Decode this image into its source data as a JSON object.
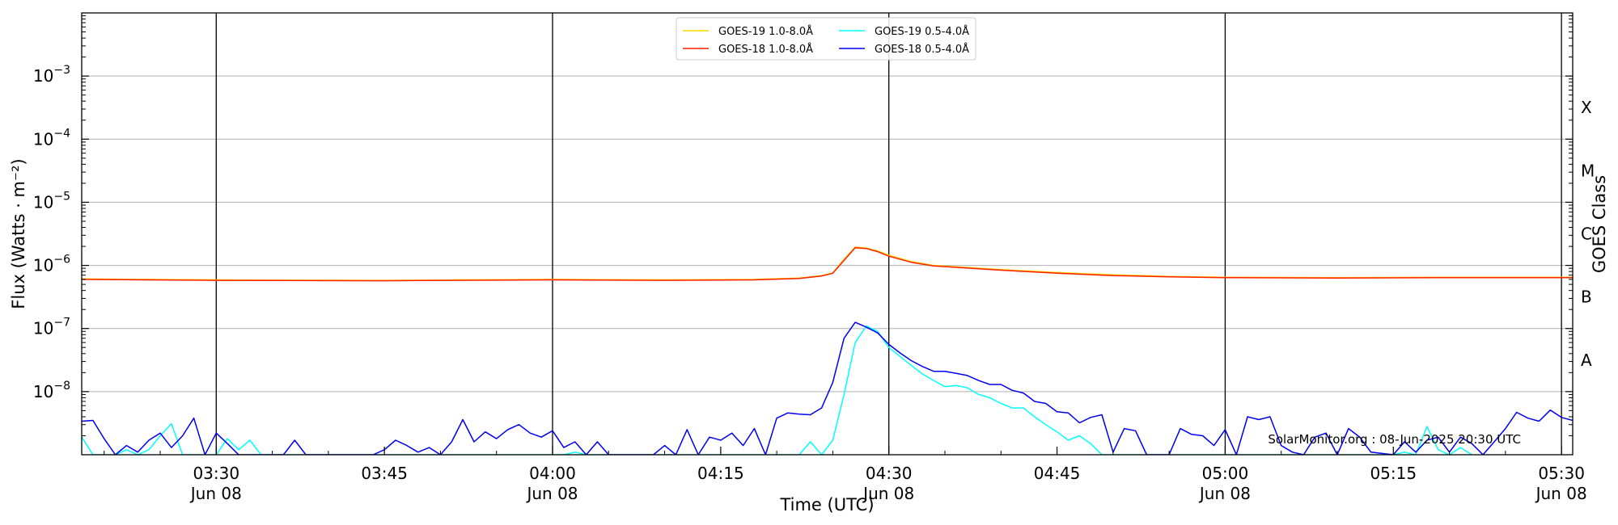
{
  "chart_data": {
    "type": "line",
    "xlabel": "Time (UTC)",
    "ylabel": "Flux (Watts · m⁻²)",
    "y2label": "GOES Class",
    "yscale": "log",
    "ylim": [
      1e-09,
      0.01
    ],
    "xlim": [
      "03:18",
      "05:31"
    ],
    "grid": "horizontal",
    "legend": "top-center",
    "x_ticks": [
      {
        "time": "03:30",
        "label": "03:30",
        "sublabel": "Jun 08"
      },
      {
        "time": "03:45",
        "label": "03:45",
        "sublabel": ""
      },
      {
        "time": "04:00",
        "label": "04:00",
        "sublabel": "Jun 08"
      },
      {
        "time": "04:15",
        "label": "04:15",
        "sublabel": ""
      },
      {
        "time": "04:30",
        "label": "04:30",
        "sublabel": "Jun 08"
      },
      {
        "time": "04:45",
        "label": "04:45",
        "sublabel": ""
      },
      {
        "time": "05:00",
        "label": "05:00",
        "sublabel": "Jun 08"
      },
      {
        "time": "05:15",
        "label": "05:15",
        "sublabel": ""
      },
      {
        "time": "05:30",
        "label": "05:30",
        "sublabel": "Jun 08"
      }
    ],
    "vertical_lines": [
      "03:30",
      "04:00",
      "04:30",
      "05:00",
      "05:30"
    ],
    "y_ticks": [
      {
        "value": 1e-08,
        "base": "10",
        "exp": "−8"
      },
      {
        "value": 1e-07,
        "base": "10",
        "exp": "−7"
      },
      {
        "value": 1e-06,
        "base": "10",
        "exp": "−6"
      },
      {
        "value": 1e-05,
        "base": "10",
        "exp": "−5"
      },
      {
        "value": 0.0001,
        "base": "10",
        "exp": "−4"
      },
      {
        "value": 0.001,
        "base": "10",
        "exp": "−3"
      }
    ],
    "goes_classes": [
      {
        "label": "A",
        "value": 3.16e-08
      },
      {
        "label": "B",
        "value": 3.16e-07
      },
      {
        "label": "C",
        "value": 3.16e-06
      },
      {
        "label": "M",
        "value": 3.16e-05
      },
      {
        "label": "X",
        "value": 0.000316
      }
    ],
    "series": [
      {
        "name": "GOES-19 1.0-8.0Å",
        "color": "#ffd700",
        "legend_row": 0,
        "legend_col": 0,
        "points": [
          [
            "03:18",
            6.1e-07
          ],
          [
            "03:30",
            5.9e-07
          ],
          [
            "03:45",
            5.8e-07
          ],
          [
            "04:00",
            6e-07
          ],
          [
            "04:10",
            5.9e-07
          ],
          [
            "04:18",
            6e-07
          ],
          [
            "04:22",
            6.3e-07
          ],
          [
            "04:24",
            6.9e-07
          ],
          [
            "04:25",
            7.6e-07
          ],
          [
            "04:26",
            1.25e-06
          ],
          [
            "04:27",
            1.95e-06
          ],
          [
            "04:28",
            1.88e-06
          ],
          [
            "04:29",
            1.7e-06
          ],
          [
            "04:30",
            1.45e-06
          ],
          [
            "04:32",
            1.15e-06
          ],
          [
            "04:34",
            1e-06
          ],
          [
            "04:36",
            9.5e-07
          ],
          [
            "04:40",
            8.6e-07
          ],
          [
            "04:45",
            7.7e-07
          ],
          [
            "04:50",
            7.1e-07
          ],
          [
            "04:55",
            6.7e-07
          ],
          [
            "05:00",
            6.5e-07
          ],
          [
            "05:10",
            6.4e-07
          ],
          [
            "05:20",
            6.5e-07
          ],
          [
            "05:31",
            6.5e-07
          ]
        ]
      },
      {
        "name": "GOES-18 1.0-8.0Å",
        "color": "#ff2000",
        "legend_row": 1,
        "legend_col": 0,
        "points": [
          [
            "03:18",
            6e-07
          ],
          [
            "03:30",
            5.8e-07
          ],
          [
            "03:45",
            5.7e-07
          ],
          [
            "04:00",
            5.9e-07
          ],
          [
            "04:10",
            5.8e-07
          ],
          [
            "04:18",
            5.9e-07
          ],
          [
            "04:22",
            6.2e-07
          ],
          [
            "04:24",
            6.8e-07
          ],
          [
            "04:25",
            7.5e-07
          ],
          [
            "04:26",
            1.2e-06
          ],
          [
            "04:27",
            1.9e-06
          ],
          [
            "04:28",
            1.85e-06
          ],
          [
            "04:29",
            1.65e-06
          ],
          [
            "04:30",
            1.4e-06
          ],
          [
            "04:32",
            1.12e-06
          ],
          [
            "04:34",
            9.8e-07
          ],
          [
            "04:36",
            9.3e-07
          ],
          [
            "04:40",
            8.4e-07
          ],
          [
            "04:45",
            7.5e-07
          ],
          [
            "04:50",
            6.9e-07
          ],
          [
            "04:55",
            6.6e-07
          ],
          [
            "05:00",
            6.4e-07
          ],
          [
            "05:10",
            6.3e-07
          ],
          [
            "05:20",
            6.4e-07
          ],
          [
            "05:31",
            6.4e-07
          ]
        ]
      },
      {
        "name": "GOES-19 0.5-4.0Å",
        "color": "#00ffff",
        "legend_row": 0,
        "legend_col": 1,
        "points": [
          [
            "03:18",
            1.9e-09
          ],
          [
            "03:19",
            1e-09
          ],
          [
            "03:21",
            1e-09
          ],
          [
            "03:22",
            1.2e-09
          ],
          [
            "03:23",
            1e-09
          ],
          [
            "03:24",
            1.2e-09
          ],
          [
            "03:25",
            2e-09
          ],
          [
            "03:26",
            3.1e-09
          ],
          [
            "03:27",
            1e-09
          ],
          [
            "03:30",
            1e-09
          ],
          [
            "03:31",
            1.8e-09
          ],
          [
            "03:32",
            1.2e-09
          ],
          [
            "03:33",
            1.7e-09
          ],
          [
            "03:34",
            1e-09
          ],
          [
            "04:01",
            1e-09
          ],
          [
            "04:02",
            1.1e-09
          ],
          [
            "04:03",
            1e-09
          ],
          [
            "04:22",
            1e-09
          ],
          [
            "04:23",
            1.6e-09
          ],
          [
            "04:24",
            1e-09
          ],
          [
            "04:25",
            1.7e-09
          ],
          [
            "04:26",
            9e-09
          ],
          [
            "04:27",
            6e-08
          ],
          [
            "04:28",
            1.1e-07
          ],
          [
            "04:29",
            9e-08
          ],
          [
            "04:30",
            5e-08
          ],
          [
            "04:31",
            3.6e-08
          ],
          [
            "04:32",
            2.6e-08
          ],
          [
            "04:33",
            1.9e-08
          ],
          [
            "04:34",
            1.5e-08
          ],
          [
            "04:35",
            1.2e-08
          ],
          [
            "04:36",
            1.25e-08
          ],
          [
            "04:37",
            1.15e-08
          ],
          [
            "04:38",
            9e-09
          ],
          [
            "04:39",
            8e-09
          ],
          [
            "04:40",
            6.5e-09
          ],
          [
            "04:41",
            5.5e-09
          ],
          [
            "04:42",
            5.5e-09
          ],
          [
            "04:43",
            4e-09
          ],
          [
            "04:44",
            3e-09
          ],
          [
            "04:45",
            2.3e-09
          ],
          [
            "04:46",
            1.7e-09
          ],
          [
            "04:47",
            2e-09
          ],
          [
            "04:48",
            1.5e-09
          ],
          [
            "04:49",
            1e-09
          ],
          [
            "05:15",
            1e-09
          ],
          [
            "05:16",
            1.1e-09
          ],
          [
            "05:17",
            1e-09
          ],
          [
            "05:18",
            2.8e-09
          ],
          [
            "05:19",
            1.2e-09
          ],
          [
            "05:20",
            1e-09
          ],
          [
            "05:21",
            1.3e-09
          ],
          [
            "05:22",
            1e-09
          ]
        ]
      },
      {
        "name": "GOES-18 0.5-4.0Å",
        "color": "#0000ee",
        "legend_row": 1,
        "legend_col": 1,
        "points": [
          [
            "03:18",
            3.4e-09
          ],
          [
            "03:19",
            3.5e-09
          ],
          [
            "03:20",
            1.8e-09
          ],
          [
            "03:21",
            1e-09
          ],
          [
            "03:22",
            1.4e-09
          ],
          [
            "03:23",
            1.1e-09
          ],
          [
            "03:24",
            1.7e-09
          ],
          [
            "03:25",
            2.2e-09
          ],
          [
            "03:26",
            1.3e-09
          ],
          [
            "03:27",
            2e-09
          ],
          [
            "03:28",
            3.8e-09
          ],
          [
            "03:29",
            1e-09
          ],
          [
            "03:30",
            2.2e-09
          ],
          [
            "03:31",
            1.5e-09
          ],
          [
            "03:32",
            1e-09
          ],
          [
            "03:36",
            1e-09
          ],
          [
            "03:37",
            1.7e-09
          ],
          [
            "03:38",
            1e-09
          ],
          [
            "03:44",
            1e-09
          ],
          [
            "03:45",
            1.2e-09
          ],
          [
            "03:46",
            1.7e-09
          ],
          [
            "03:47",
            1.4e-09
          ],
          [
            "03:48",
            1.1e-09
          ],
          [
            "03:49",
            1.3e-09
          ],
          [
            "03:50",
            1e-09
          ],
          [
            "03:51",
            1.6e-09
          ],
          [
            "03:52",
            3.6e-09
          ],
          [
            "03:53",
            1.6e-09
          ],
          [
            "03:54",
            2.3e-09
          ],
          [
            "03:55",
            1.8e-09
          ],
          [
            "03:56",
            2.5e-09
          ],
          [
            "03:57",
            3e-09
          ],
          [
            "03:58",
            2.2e-09
          ],
          [
            "03:59",
            1.9e-09
          ],
          [
            "04:00",
            2.4e-09
          ],
          [
            "04:01",
            1.3e-09
          ],
          [
            "04:02",
            1.6e-09
          ],
          [
            "04:03",
            1e-09
          ],
          [
            "04:04",
            1.6e-09
          ],
          [
            "04:05",
            1e-09
          ],
          [
            "04:09",
            1e-09
          ],
          [
            "04:10",
            1.4e-09
          ],
          [
            "04:11",
            1e-09
          ],
          [
            "04:12",
            2.5e-09
          ],
          [
            "04:13",
            1e-09
          ],
          [
            "04:14",
            1.9e-09
          ],
          [
            "04:15",
            1.7e-09
          ],
          [
            "04:16",
            2.2e-09
          ],
          [
            "04:17",
            1.4e-09
          ],
          [
            "04:18",
            2.6e-09
          ],
          [
            "04:19",
            1e-09
          ],
          [
            "04:20",
            3.8e-09
          ],
          [
            "04:21",
            4.6e-09
          ],
          [
            "04:22",
            4.4e-09
          ],
          [
            "04:23",
            4.3e-09
          ],
          [
            "04:24",
            5.5e-09
          ],
          [
            "04:25",
            1.4e-08
          ],
          [
            "04:26",
            7e-08
          ],
          [
            "04:27",
            1.25e-07
          ],
          [
            "04:28",
            1.05e-07
          ],
          [
            "04:29",
            8.5e-08
          ],
          [
            "04:30",
            5.6e-08
          ],
          [
            "04:31",
            4.1e-08
          ],
          [
            "04:32",
            3.1e-08
          ],
          [
            "04:33",
            2.5e-08
          ],
          [
            "04:34",
            2.1e-08
          ],
          [
            "04:35",
            2.1e-08
          ],
          [
            "04:36",
            1.95e-08
          ],
          [
            "04:37",
            1.8e-08
          ],
          [
            "04:38",
            1.5e-08
          ],
          [
            "04:39",
            1.3e-08
          ],
          [
            "04:40",
            1.3e-08
          ],
          [
            "04:41",
            1.05e-08
          ],
          [
            "04:42",
            9.5e-09
          ],
          [
            "04:43",
            7e-09
          ],
          [
            "04:44",
            6.5e-09
          ],
          [
            "04:45",
            4.8e-09
          ],
          [
            "04:46",
            4.6e-09
          ],
          [
            "04:47",
            3.2e-09
          ],
          [
            "04:48",
            3.9e-09
          ],
          [
            "04:49",
            4.3e-09
          ],
          [
            "04:50",
            1.1e-09
          ],
          [
            "04:51",
            2.6e-09
          ],
          [
            "04:52",
            2.4e-09
          ],
          [
            "04:53",
            1e-09
          ],
          [
            "04:55",
            1e-09
          ],
          [
            "04:56",
            2.6e-09
          ],
          [
            "04:57",
            2.1e-09
          ],
          [
            "04:58",
            2e-09
          ],
          [
            "04:59",
            1.4e-09
          ],
          [
            "05:00",
            2.5e-09
          ],
          [
            "05:01",
            1e-09
          ],
          [
            "05:02",
            4e-09
          ],
          [
            "05:03",
            3.6e-09
          ],
          [
            "05:04",
            4e-09
          ],
          [
            "05:05",
            1.4e-09
          ],
          [
            "05:06",
            1.1e-09
          ],
          [
            "05:07",
            1e-09
          ],
          [
            "05:08",
            1.9e-09
          ],
          [
            "05:09",
            2.2e-09
          ],
          [
            "05:10",
            1e-09
          ],
          [
            "05:11",
            2.6e-09
          ],
          [
            "05:12",
            1.9e-09
          ],
          [
            "05:13",
            1.1e-09
          ],
          [
            "05:15",
            1e-09
          ],
          [
            "05:16",
            1.6e-09
          ],
          [
            "05:17",
            1.1e-09
          ],
          [
            "05:18",
            1.7e-09
          ],
          [
            "05:19",
            1.9e-09
          ],
          [
            "05:20",
            1.1e-09
          ],
          [
            "05:21",
            1.9e-09
          ],
          [
            "05:22",
            1.5e-09
          ],
          [
            "05:23",
            1e-09
          ],
          [
            "05:24",
            1.6e-09
          ],
          [
            "05:25",
            2.6e-09
          ],
          [
            "05:26",
            4.7e-09
          ],
          [
            "05:27",
            3.8e-09
          ],
          [
            "05:28",
            3.4e-09
          ],
          [
            "05:29",
            5.1e-09
          ],
          [
            "05:30",
            3.9e-09
          ],
          [
            "05:31",
            3.5e-09
          ]
        ]
      }
    ],
    "credit": "SolarMonitor.org : 08-Jun-2025 20:30 UTC"
  }
}
